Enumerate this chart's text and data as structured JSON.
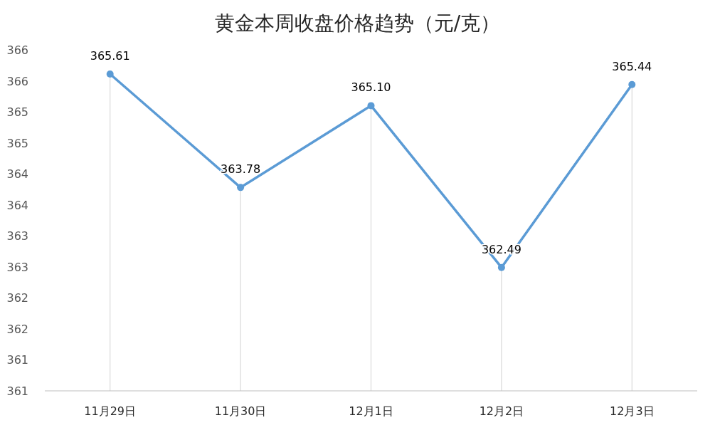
{
  "chart_data": {
    "type": "line",
    "title": "黄金本周收盘价格趋势（元/克）",
    "categories": [
      "11月29日",
      "11月30日",
      "12月1日",
      "12月2日",
      "12月3日"
    ],
    "series": [
      {
        "color": "#5b9bd5",
        "values": [
          365.61,
          363.78,
          365.1,
          362.49,
          365.44
        ]
      }
    ],
    "ylim": [
      360.5,
      366
    ],
    "yticks": [
      {
        "value": 360.5,
        "label": "361"
      },
      361,
      {
        "value": 361.5,
        "label": "362"
      },
      362,
      {
        "value": 362.5,
        "label": "363"
      },
      363,
      {
        "value": 363.5,
        "label": "364"
      },
      364,
      {
        "value": 364.5,
        "label": "365"
      },
      365,
      {
        "value": 365.5,
        "label": "366"
      },
      366
    ],
    "value_labels": [
      "365.61",
      "363.78",
      "365.10",
      "362.49",
      "365.44"
    ],
    "grid": "x",
    "marker": "circle",
    "line_style": "solid"
  }
}
